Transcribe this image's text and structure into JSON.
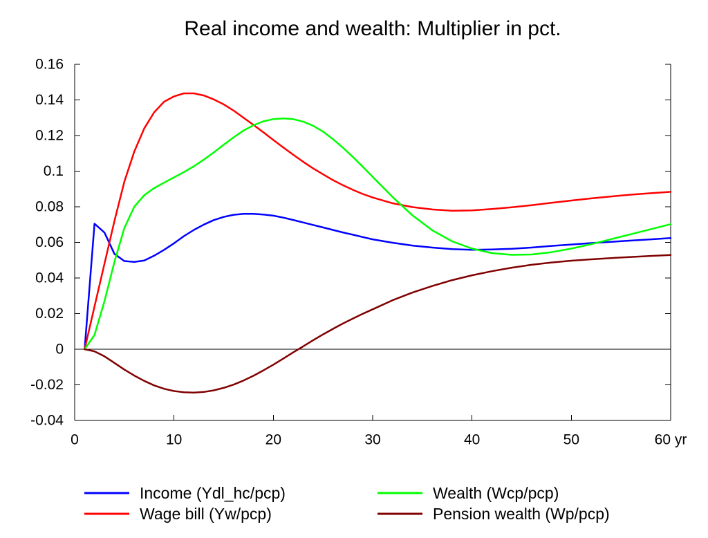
{
  "chart_data": {
    "type": "line",
    "title": "Real income and wealth: Multiplier in pct.",
    "xlim": [
      0,
      60
    ],
    "ylim": [
      -0.04,
      0.16
    ],
    "x_ticks": [
      0,
      10,
      20,
      30,
      40,
      50,
      60
    ],
    "x_tick_labels": [
      "0",
      "10",
      "20",
      "30",
      "40",
      "50",
      "60 yr"
    ],
    "y_ticks": [
      0.16,
      0.14,
      0.12,
      0.1,
      0.08,
      0.06,
      0.04,
      0.02,
      0,
      -0.02,
      -0.04
    ],
    "y_tick_labels": [
      "0.16",
      "0.14",
      "0.12",
      "0.1",
      "0.08",
      "0.06",
      "0.04",
      "0.02",
      "0",
      "-0.02",
      "-0.04"
    ],
    "reference_line_y": 0,
    "grid": false,
    "legend_position": "bottom",
    "x": [
      1,
      2,
      3,
      4,
      5,
      6,
      7,
      8,
      9,
      10,
      11,
      12,
      13,
      14,
      15,
      16,
      17,
      18,
      19,
      20,
      21,
      22,
      23,
      24,
      25,
      26,
      27,
      28,
      29,
      30,
      32,
      34,
      36,
      38,
      40,
      42,
      44,
      46,
      48,
      50,
      52,
      54,
      56,
      58,
      60
    ],
    "series": [
      {
        "name": "Income (Ydl_hc/pcp)",
        "color": "#0000ff",
        "values": [
          0,
          0.0705,
          0.0655,
          0.0535,
          0.0495,
          0.049,
          0.0498,
          0.0525,
          0.0558,
          0.0595,
          0.0635,
          0.067,
          0.07,
          0.0725,
          0.0743,
          0.0755,
          0.076,
          0.076,
          0.0756,
          0.075,
          0.0739,
          0.0726,
          0.0712,
          0.0698,
          0.0684,
          0.067,
          0.0656,
          0.0643,
          0.063,
          0.0617,
          0.0598,
          0.0582,
          0.0571,
          0.0562,
          0.0558,
          0.056,
          0.0564,
          0.0571,
          0.058,
          0.0588,
          0.0596,
          0.0603,
          0.061,
          0.0617,
          0.0624
        ]
      },
      {
        "name": "Wage bill (Yw/pcp)",
        "color": "#ff0000",
        "values": [
          0,
          0.024,
          0.048,
          0.072,
          0.094,
          0.111,
          0.124,
          0.133,
          0.139,
          0.142,
          0.1437,
          0.1437,
          0.1425,
          0.1403,
          0.1375,
          0.134,
          0.13,
          0.126,
          0.1218,
          0.1175,
          0.1133,
          0.1092,
          0.1053,
          0.1016,
          0.0982,
          0.095,
          0.0921,
          0.0895,
          0.0872,
          0.0852,
          0.082,
          0.0798,
          0.0785,
          0.0778,
          0.078,
          0.0787,
          0.0797,
          0.0809,
          0.0822,
          0.0835,
          0.0847,
          0.0858,
          0.0868,
          0.0876,
          0.0884
        ]
      },
      {
        "name": "Wealth (Wcp/pcp)",
        "color": "#00ff00",
        "values": [
          0,
          0.008,
          0.027,
          0.049,
          0.068,
          0.08,
          0.0865,
          0.0905,
          0.0935,
          0.0965,
          0.0995,
          0.1027,
          0.1065,
          0.1105,
          0.1148,
          0.119,
          0.1228,
          0.1258,
          0.128,
          0.1292,
          0.1296,
          0.1292,
          0.1278,
          0.1255,
          0.1222,
          0.118,
          0.1132,
          0.108,
          0.1025,
          0.0968,
          0.0855,
          0.0752,
          0.0668,
          0.0606,
          0.0565,
          0.054,
          0.053,
          0.0532,
          0.0545,
          0.0565,
          0.059,
          0.0618,
          0.0646,
          0.0674,
          0.0702
        ]
      },
      {
        "name": "Pension wealth (Wp/pcp)",
        "color": "#800000",
        "values": [
          0,
          -0.0012,
          -0.004,
          -0.0077,
          -0.0114,
          -0.0148,
          -0.0178,
          -0.0203,
          -0.0222,
          -0.0235,
          -0.0242,
          -0.0244,
          -0.024,
          -0.0231,
          -0.0217,
          -0.0199,
          -0.0176,
          -0.0149,
          -0.0119,
          -0.0087,
          -0.0053,
          -0.0018,
          0.0016,
          0.005,
          0.0083,
          0.0114,
          0.0144,
          0.0172,
          0.0199,
          0.0224,
          0.0275,
          0.0318,
          0.0355,
          0.0388,
          0.0415,
          0.0438,
          0.0458,
          0.0474,
          0.0487,
          0.0497,
          0.0505,
          0.0512,
          0.0518,
          0.0524,
          0.0529
        ]
      }
    ]
  }
}
